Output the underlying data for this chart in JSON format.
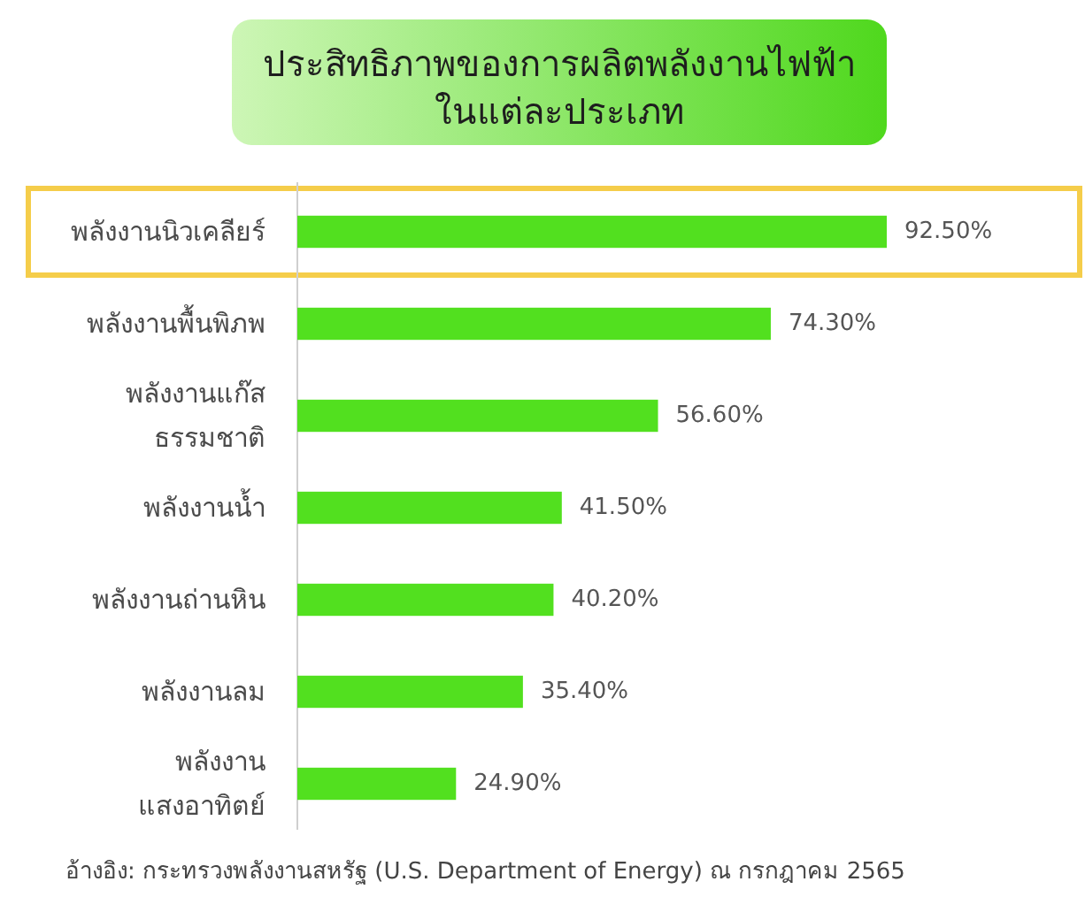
{
  "chart_data": {
    "type": "bar",
    "orientation": "horizontal",
    "title": "ประสิทธิภาพของการผลิตพลังงานไฟฟ้า\nในแต่ละประเภท",
    "categories": [
      "พลังงานนิวเคลียร์",
      "พลังงานพื้นพิภพ",
      "พลังงานแก๊ส\nธรรมชาติ",
      "พลังงานน้ำ",
      "พลังงานถ่านหิน",
      "พลังงานลม",
      "พลังงาน\nแสงอาทิตย์"
    ],
    "values": [
      92.5,
      74.3,
      56.6,
      41.5,
      40.2,
      35.4,
      24.9
    ],
    "color": "#52e01f",
    "value_labels": [
      "92.50%",
      "74.30%",
      "56.60%",
      "41.50%",
      "40.20%",
      "35.40%",
      "24.90%"
    ],
    "tick_labels": "y",
    "annotations": [
      "อ้างอิง: กระทรวงพลังงานสหรัฐ (U.S. Department of Energy) ณ กรกฎาคม 2565"
    ]
  }
}
